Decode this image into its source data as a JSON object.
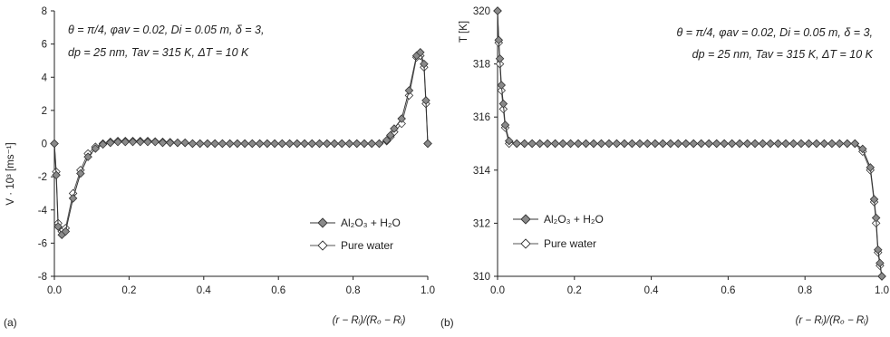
{
  "chart_data": [
    {
      "type": "line",
      "panel_label": "(a)",
      "title": "",
      "xlabel": "(r − Rᵢ)/(Rₒ − Rᵢ)",
      "ylabel": "V · 10³ [ms⁻¹]",
      "xlim": [
        0,
        1
      ],
      "ylim": [
        -8,
        8
      ],
      "x_ticks": [
        0,
        0.2,
        0.4,
        0.6,
        0.8,
        1.0
      ],
      "x_tick_labels": [
        "0.0",
        "0.2",
        "0.4",
        "0.6",
        "0.8",
        "1.0"
      ],
      "y_ticks": [
        -8,
        -6,
        -4,
        -2,
        0,
        2,
        4,
        6,
        8
      ],
      "y_tick_labels": [
        "-8",
        "-6",
        "-4",
        "-2",
        "0",
        "2",
        "4",
        "6",
        "8"
      ],
      "grid": false,
      "legend": "bottom-right",
      "annotation_lines": [
        "θ = π/4,  φav = 0.02, Di = 0.05 m, δ = 3,",
        "dp = 25 nm, Tav = 315 K, ΔT =  10 K"
      ],
      "series": [
        {
          "name": "Al₂O₃ + H₂O",
          "marker": "diamond-filled",
          "x": [
            0,
            0.005,
            0.01,
            0.02,
            0.03,
            0.05,
            0.07,
            0.09,
            0.11,
            0.13,
            0.15,
            0.17,
            0.19,
            0.21,
            0.23,
            0.25,
            0.27,
            0.29,
            0.31,
            0.33,
            0.35,
            0.37,
            0.39,
            0.41,
            0.43,
            0.45,
            0.47,
            0.49,
            0.51,
            0.53,
            0.55,
            0.57,
            0.59,
            0.61,
            0.63,
            0.65,
            0.67,
            0.69,
            0.71,
            0.73,
            0.75,
            0.77,
            0.79,
            0.81,
            0.83,
            0.85,
            0.87,
            0.89,
            0.9,
            0.91,
            0.93,
            0.95,
            0.97,
            0.98,
            0.99,
            0.995,
            1.0
          ],
          "y": [
            0,
            -1.9,
            -5.0,
            -5.5,
            -5.3,
            -3.3,
            -1.8,
            -0.8,
            -0.3,
            -0.05,
            0.05,
            0.1,
            0.1,
            0.1,
            0.1,
            0.1,
            0.1,
            0.05,
            0.05,
            0.05,
            0.05,
            0.0,
            0.0,
            0.0,
            0.0,
            0.0,
            0.0,
            0.0,
            0.0,
            0.0,
            0.0,
            0.0,
            0.0,
            0.0,
            0.0,
            0.0,
            0.0,
            0.0,
            0.0,
            0.0,
            0.0,
            0.0,
            0.0,
            0.0,
            0.0,
            0.0,
            0.0,
            0.2,
            0.5,
            0.9,
            1.5,
            3.2,
            5.3,
            5.5,
            4.8,
            2.6,
            0
          ]
        },
        {
          "name": "Pure water",
          "marker": "diamond-open",
          "x": [
            0,
            0.005,
            0.01,
            0.02,
            0.03,
            0.05,
            0.07,
            0.09,
            0.11,
            0.13,
            0.15,
            0.17,
            0.19,
            0.21,
            0.23,
            0.25,
            0.27,
            0.29,
            0.31,
            0.33,
            0.35,
            0.37,
            0.39,
            0.41,
            0.43,
            0.45,
            0.47,
            0.49,
            0.51,
            0.53,
            0.55,
            0.57,
            0.59,
            0.61,
            0.63,
            0.65,
            0.67,
            0.69,
            0.71,
            0.73,
            0.75,
            0.77,
            0.79,
            0.81,
            0.83,
            0.85,
            0.87,
            0.89,
            0.9,
            0.91,
            0.93,
            0.95,
            0.97,
            0.98,
            0.99,
            0.995,
            1.0
          ],
          "y": [
            0,
            -1.7,
            -4.8,
            -5.3,
            -5.1,
            -3.0,
            -1.6,
            -0.6,
            -0.2,
            0.0,
            0.1,
            0.15,
            0.15,
            0.15,
            0.15,
            0.15,
            0.12,
            0.1,
            0.08,
            0.05,
            0.05,
            0.0,
            0.0,
            0.0,
            0.0,
            0.0,
            0.0,
            0.0,
            0.0,
            0.0,
            0.0,
            0.0,
            0.0,
            0.0,
            0.0,
            0.0,
            0.0,
            0.0,
            0.0,
            0.0,
            0.0,
            0.0,
            0.0,
            0.0,
            0.0,
            0.0,
            0.0,
            0.15,
            0.4,
            0.7,
            1.2,
            2.9,
            5.2,
            5.3,
            4.6,
            2.4,
            0
          ]
        }
      ]
    },
    {
      "type": "line",
      "panel_label": "(b)",
      "title": "",
      "xlabel": "(r − Rᵢ)/(Rₒ − Rᵢ)",
      "ylabel": "T [K]",
      "xlim": [
        0,
        1
      ],
      "ylim": [
        310,
        320
      ],
      "x_ticks": [
        0,
        0.2,
        0.4,
        0.6,
        0.8,
        1.0
      ],
      "x_tick_labels": [
        "0.0",
        "0.2",
        "0.4",
        "0.6",
        "0.8",
        "1.0"
      ],
      "y_ticks": [
        310,
        312,
        314,
        316,
        318,
        320
      ],
      "y_tick_labels": [
        "310",
        "312",
        "314",
        "316",
        "318",
        "320"
      ],
      "grid": false,
      "legend": "bottom-left",
      "annotation_lines": [
        "θ = π/4,  φav = 0.02, Di = 0.05 m, δ = 3,",
        "dp = 25 nm, Tav = 315 K, ΔT =  10 K"
      ],
      "series": [
        {
          "name": "Al₂O₃ + H₂O",
          "marker": "diamond-filled",
          "x": [
            0.0,
            0.003,
            0.006,
            0.01,
            0.015,
            0.02,
            0.03,
            0.05,
            0.07,
            0.09,
            0.11,
            0.13,
            0.15,
            0.17,
            0.19,
            0.21,
            0.23,
            0.25,
            0.27,
            0.29,
            0.31,
            0.33,
            0.35,
            0.37,
            0.39,
            0.41,
            0.43,
            0.45,
            0.47,
            0.49,
            0.51,
            0.53,
            0.55,
            0.57,
            0.59,
            0.61,
            0.63,
            0.65,
            0.67,
            0.69,
            0.71,
            0.73,
            0.75,
            0.77,
            0.79,
            0.81,
            0.83,
            0.85,
            0.87,
            0.89,
            0.91,
            0.93,
            0.95,
            0.97,
            0.98,
            0.985,
            0.99,
            0.995,
            1.0
          ],
          "y": [
            320,
            318.9,
            318.2,
            317.2,
            316.5,
            315.7,
            315.1,
            315.0,
            315.0,
            315.0,
            315.0,
            315.0,
            315.0,
            315.0,
            315.0,
            315.0,
            315.0,
            315.0,
            315.0,
            315.0,
            315.0,
            315.0,
            315.0,
            315.0,
            315.0,
            315.0,
            315.0,
            315.0,
            315.0,
            315.0,
            315.0,
            315.0,
            315.0,
            315.0,
            315.0,
            315.0,
            315.0,
            315.0,
            315.0,
            315.0,
            315.0,
            315.0,
            315.0,
            315.0,
            315.0,
            315.0,
            315.0,
            315.0,
            315.0,
            315.0,
            315.0,
            315.0,
            314.8,
            314.1,
            312.9,
            312.2,
            311.0,
            310.5,
            310.0
          ]
        },
        {
          "name": "Pure water",
          "marker": "diamond-open",
          "x": [
            0.0,
            0.003,
            0.006,
            0.01,
            0.015,
            0.02,
            0.03,
            0.05,
            0.07,
            0.09,
            0.11,
            0.13,
            0.15,
            0.17,
            0.19,
            0.21,
            0.23,
            0.25,
            0.27,
            0.29,
            0.31,
            0.33,
            0.35,
            0.37,
            0.39,
            0.41,
            0.43,
            0.45,
            0.47,
            0.49,
            0.51,
            0.53,
            0.55,
            0.57,
            0.59,
            0.61,
            0.63,
            0.65,
            0.67,
            0.69,
            0.71,
            0.73,
            0.75,
            0.77,
            0.79,
            0.81,
            0.83,
            0.85,
            0.87,
            0.89,
            0.91,
            0.93,
            0.95,
            0.97,
            0.98,
            0.985,
            0.99,
            0.995,
            1.0
          ],
          "y": [
            320,
            318.8,
            318.0,
            317.0,
            316.3,
            315.6,
            315.0,
            315.0,
            315.0,
            315.0,
            315.0,
            315.0,
            315.0,
            315.0,
            315.0,
            315.0,
            315.0,
            315.0,
            315.0,
            315.0,
            315.0,
            315.0,
            315.0,
            315.0,
            315.0,
            315.0,
            315.0,
            315.0,
            315.0,
            315.0,
            315.0,
            315.0,
            315.0,
            315.0,
            315.0,
            315.0,
            315.0,
            315.0,
            315.0,
            315.0,
            315.0,
            315.0,
            315.0,
            315.0,
            315.0,
            315.0,
            315.0,
            315.0,
            315.0,
            315.0,
            315.0,
            315.0,
            314.7,
            314.0,
            312.8,
            312.0,
            310.9,
            310.4,
            310.0
          ]
        }
      ]
    }
  ],
  "colors": {
    "axis": "#222222",
    "line_nano": "#333333",
    "line_water": "#555555",
    "marker_nano_fill": "#8a8a8a",
    "marker_open_fill": "#ffffff"
  }
}
